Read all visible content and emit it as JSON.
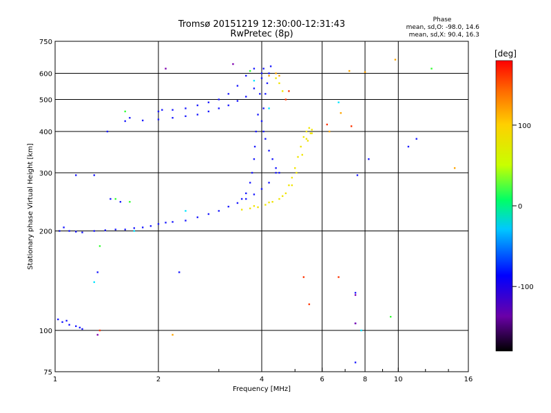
{
  "chart_data": {
    "type": "scatter",
    "title": "Tromsø 20151219 12:30:00-12:31:43",
    "subtitle": "RwPretec (8p)",
    "xlabel": "Frequency [MHz]",
    "ylabel": "Stationary phase Virtual Height [km]",
    "x_scale": "log",
    "y_scale": "log",
    "xlim": [
      1,
      16
    ],
    "ylim": [
      75,
      750
    ],
    "xticks": [
      {
        "v": 1,
        "label": "1"
      },
      {
        "v": 2,
        "label": "2"
      },
      {
        "v": 4,
        "label": "4"
      },
      {
        "v": 6,
        "label": "6"
      },
      {
        "v": 8,
        "label": "8"
      },
      {
        "v": 10,
        "label": "10"
      },
      {
        "v": 16,
        "label": "16"
      }
    ],
    "xgrid": [
      2,
      4,
      6,
      8,
      10
    ],
    "yticks": [
      {
        "v": 75,
        "label": "75"
      },
      {
        "v": 100,
        "label": "100"
      },
      {
        "v": 200,
        "label": "200"
      },
      {
        "v": 300,
        "label": "300"
      },
      {
        "v": 400,
        "label": "400"
      },
      {
        "v": 500,
        "label": "500"
      },
      {
        "v": 600,
        "label": "600"
      },
      {
        "v": 750,
        "label": "750"
      }
    ],
    "ygrid": [
      100,
      200,
      300,
      400,
      500,
      600
    ],
    "grid": true,
    "phase_info": {
      "heading": "Phase",
      "line_o": "mean, sd,O: -98.0, 14.6",
      "line_x": "mean, sd,X:  90.4, 16.3"
    },
    "colorbar": {
      "label": "[deg]",
      "ticks": [
        {
          "v": 100,
          "label": "100"
        },
        {
          "v": 0,
          "label": "0"
        },
        {
          "v": -100,
          "label": "-100"
        }
      ],
      "range": [
        -180,
        180
      ]
    },
    "series": [
      {
        "phase": -100,
        "color": "#1a1aff",
        "points": [
          [
            1.03,
            200
          ],
          [
            1.06,
            205
          ],
          [
            1.1,
            200
          ],
          [
            1.15,
            199
          ],
          [
            1.2,
            198
          ],
          [
            1.3,
            200
          ],
          [
            1.4,
            201
          ],
          [
            1.5,
            202
          ],
          [
            1.6,
            202
          ],
          [
            1.7,
            204
          ],
          [
            1.8,
            205
          ],
          [
            1.9,
            207
          ],
          [
            2.0,
            210
          ],
          [
            2.1,
            212
          ],
          [
            2.2,
            213
          ],
          [
            2.4,
            215
          ],
          [
            2.6,
            220
          ],
          [
            2.8,
            225
          ],
          [
            3.0,
            230
          ],
          [
            3.2,
            237
          ],
          [
            3.4,
            243
          ],
          [
            3.6,
            250
          ],
          [
            3.8,
            258
          ],
          [
            4.0,
            268
          ],
          [
            4.2,
            280
          ],
          [
            4.4,
            300
          ],
          [
            3.5,
            250
          ],
          [
            3.6,
            260
          ],
          [
            3.7,
            280
          ],
          [
            3.75,
            300
          ],
          [
            3.8,
            330
          ],
          [
            3.82,
            360
          ],
          [
            3.85,
            400
          ],
          [
            3.9,
            450
          ],
          [
            3.95,
            520
          ],
          [
            4.0,
            600
          ],
          [
            4.05,
            620
          ],
          [
            1.6,
            430
          ],
          [
            1.8,
            432
          ],
          [
            2.0,
            435
          ],
          [
            2.2,
            440
          ],
          [
            2.4,
            445
          ],
          [
            2.6,
            450
          ],
          [
            2.8,
            460
          ],
          [
            3.0,
            470
          ],
          [
            3.2,
            480
          ],
          [
            3.4,
            495
          ],
          [
            3.6,
            510
          ],
          [
            3.8,
            540
          ],
          [
            4.0,
            580
          ],
          [
            2.0,
            460
          ],
          [
            2.2,
            465
          ],
          [
            2.4,
            470
          ],
          [
            2.6,
            480
          ],
          [
            2.8,
            490
          ],
          [
            3.0,
            500
          ],
          [
            3.2,
            520
          ],
          [
            3.4,
            550
          ],
          [
            3.6,
            590
          ],
          [
            3.8,
            620
          ],
          [
            4.0,
            430
          ],
          [
            4.05,
            470
          ],
          [
            4.1,
            520
          ],
          [
            4.15,
            560
          ],
          [
            4.2,
            600
          ],
          [
            4.25,
            630
          ],
          [
            4.05,
            400
          ],
          [
            4.1,
            380
          ],
          [
            4.2,
            350
          ],
          [
            4.3,
            330
          ],
          [
            4.4,
            310
          ],
          [
            4.5,
            300
          ],
          [
            1.02,
            108
          ],
          [
            1.05,
            106
          ],
          [
            1.08,
            107
          ],
          [
            1.1,
            104
          ],
          [
            1.15,
            103
          ],
          [
            1.18,
            102
          ],
          [
            1.2,
            101
          ],
          [
            1.45,
            250
          ],
          [
            1.55,
            245
          ],
          [
            1.3,
            295
          ],
          [
            1.15,
            295
          ],
          [
            1.42,
            400
          ],
          [
            1.65,
            440
          ],
          [
            2.05,
            465
          ],
          [
            7.5,
            130
          ],
          [
            7.5,
            105
          ],
          [
            7.5,
            80
          ],
          [
            8.2,
            330
          ],
          [
            10.7,
            360
          ],
          [
            11.3,
            380
          ],
          [
            7.6,
            295
          ],
          [
            1.33,
            150
          ],
          [
            2.3,
            150
          ]
        ]
      },
      {
        "phase": 90,
        "color": "#f0e400",
        "points": [
          [
            3.5,
            232
          ],
          [
            3.7,
            234
          ],
          [
            3.9,
            236
          ],
          [
            4.1,
            240
          ],
          [
            4.3,
            245
          ],
          [
            4.5,
            250
          ],
          [
            4.7,
            260
          ],
          [
            4.8,
            275
          ],
          [
            4.9,
            290
          ],
          [
            5.0,
            310
          ],
          [
            5.1,
            335
          ],
          [
            5.2,
            360
          ],
          [
            5.3,
            385
          ],
          [
            5.4,
            400
          ],
          [
            5.5,
            410
          ],
          [
            3.8,
            238
          ],
          [
            4.2,
            244
          ],
          [
            4.6,
            255
          ],
          [
            4.9,
            275
          ],
          [
            5.05,
            300
          ],
          [
            5.25,
            340
          ],
          [
            5.45,
            375
          ],
          [
            5.55,
            395
          ],
          [
            4.4,
            580
          ],
          [
            4.5,
            560
          ],
          [
            4.6,
            530
          ],
          [
            5.4,
            380
          ],
          [
            5.6,
            405
          ],
          [
            5.6,
            395
          ]
        ]
      },
      {
        "phase": 40,
        "color": "#33ff33",
        "points": [
          [
            1.35,
            180
          ],
          [
            1.5,
            250
          ],
          [
            1.65,
            245
          ],
          [
            12.5,
            620
          ],
          [
            9.5,
            110
          ],
          [
            1.6,
            460
          ],
          [
            3.7,
            610
          ]
        ]
      },
      {
        "phase": 150,
        "color": "#ff3300",
        "points": [
          [
            4.8,
            530
          ],
          [
            4.7,
            500
          ],
          [
            6.2,
            420
          ],
          [
            5.3,
            145
          ],
          [
            5.5,
            120
          ],
          [
            6.7,
            145
          ],
          [
            7.3,
            415
          ],
          [
            1.35,
            100
          ]
        ]
      },
      {
        "phase": 120,
        "color": "#ffa500",
        "points": [
          [
            4.4,
            600
          ],
          [
            4.5,
            590
          ],
          [
            7.2,
            610
          ],
          [
            9.8,
            660
          ],
          [
            8.0,
            605
          ],
          [
            6.8,
            455
          ],
          [
            14.6,
            310
          ],
          [
            2.2,
            97
          ],
          [
            6.3,
            400
          ],
          [
            4.2,
            590
          ]
        ]
      },
      {
        "phase": -20,
        "color": "#00e5ff",
        "points": [
          [
            1.3,
            140
          ],
          [
            1.7,
            200
          ],
          [
            4.2,
            470
          ],
          [
            6.7,
            490
          ],
          [
            7.8,
            100
          ],
          [
            3.8,
            570
          ],
          [
            2.4,
            230
          ]
        ]
      },
      {
        "phase": -150,
        "color": "#7f00b0",
        "points": [
          [
            1.33,
            97
          ],
          [
            7.5,
            105
          ],
          [
            2.1,
            620
          ],
          [
            3.3,
            640
          ],
          [
            7.5,
            128
          ]
        ]
      }
    ]
  }
}
